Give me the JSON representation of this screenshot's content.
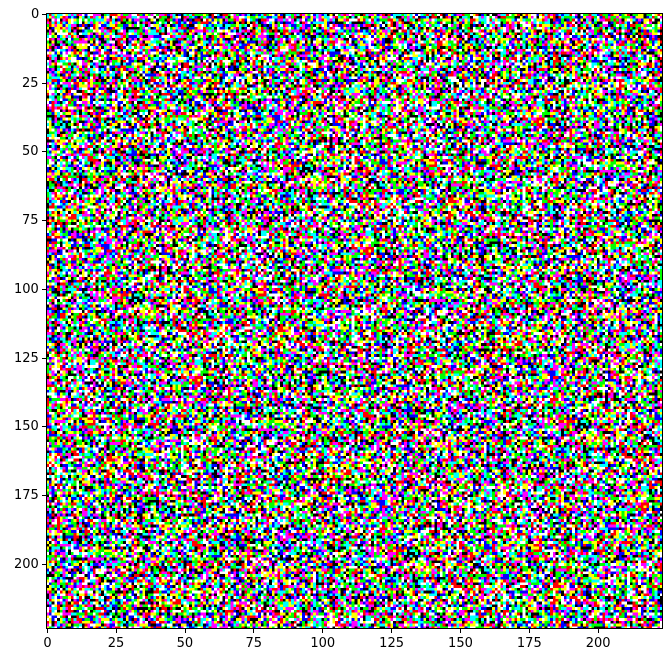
{
  "chart_data": {
    "type": "heatmap",
    "title": "",
    "xlabel": "",
    "ylabel": "",
    "image_shape": [
      224,
      224
    ],
    "xlim": [
      -0.5,
      223.5
    ],
    "ylim": [
      223.5,
      -0.5
    ],
    "x_ticks": [
      "0",
      "25",
      "50",
      "75",
      "100",
      "125",
      "150",
      "175",
      "200"
    ],
    "y_ticks": [
      "0",
      "25",
      "50",
      "75",
      "100",
      "125",
      "150",
      "175",
      "200"
    ],
    "palette": [
      "#000000",
      "#ffffff",
      "#ff0000",
      "#00ff00",
      "#0000ff",
      "#00ffff",
      "#ff00ff",
      "#ffff00"
    ],
    "grid": false
  }
}
